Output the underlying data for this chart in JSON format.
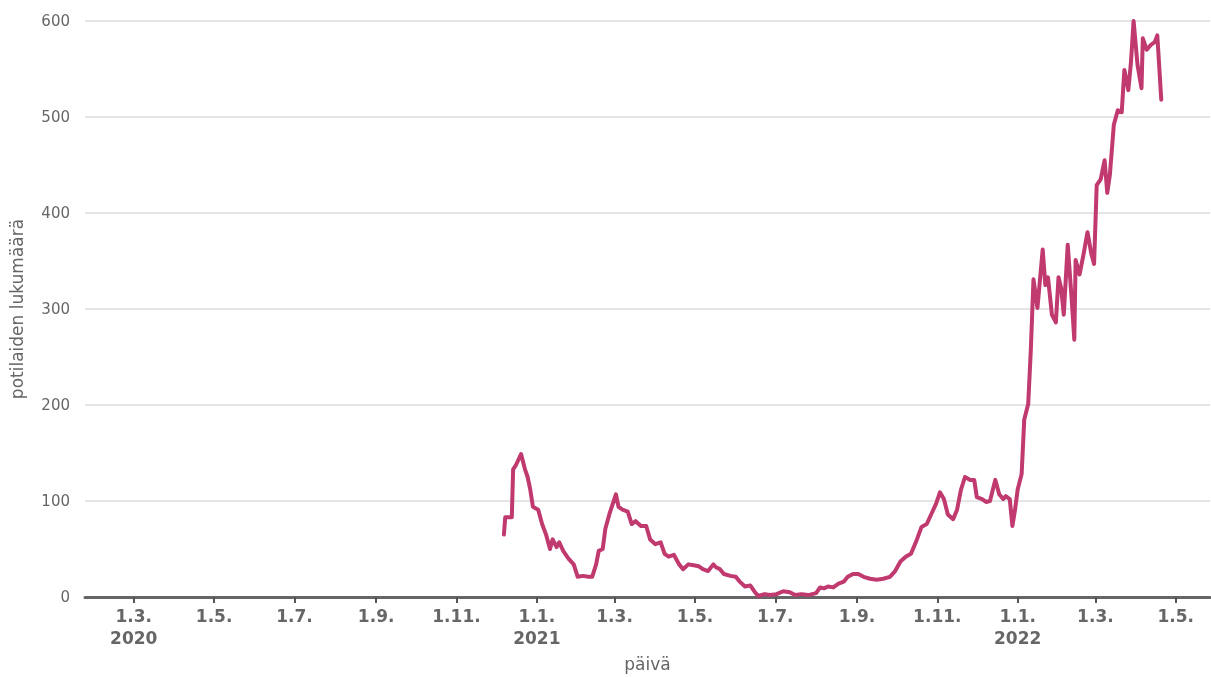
{
  "chart_data": {
    "type": "line",
    "xlabel": "päivä",
    "ylabel": "potilaiden lukumäärä",
    "xlim": [
      "2020-01-24",
      "2022-05-27"
    ],
    "xticks": [
      {
        "value": "2020-03-01",
        "label": "1.3.\n2020"
      },
      {
        "value": "2020-05-01",
        "label": "1.5."
      },
      {
        "value": "2020-07-01",
        "label": "1.7."
      },
      {
        "value": "2020-09-01",
        "label": "1.9."
      },
      {
        "value": "2020-11-01",
        "label": "1.11."
      },
      {
        "value": "2021-01-01",
        "label": "1.1.\n2021"
      },
      {
        "value": "2021-03-01",
        "label": "1.3."
      },
      {
        "value": "2021-05-01",
        "label": "1.5."
      },
      {
        "value": "2021-07-01",
        "label": "1.7."
      },
      {
        "value": "2021-09-01",
        "label": "1.9."
      },
      {
        "value": "2021-11-01",
        "label": "1.11."
      },
      {
        "value": "2022-01-01",
        "label": "1.1.\n2022"
      },
      {
        "value": "2022-03-01",
        "label": "1.3."
      },
      {
        "value": "2022-05-01",
        "label": "1.5."
      }
    ],
    "ylim": [
      0,
      600
    ],
    "yticks": [
      0,
      100,
      200,
      300,
      400,
      500,
      600
    ],
    "grid": "y",
    "marker": "none",
    "line_style": "solid",
    "series": [
      {
        "color": "#c0396f",
        "x": [
          "2020-12-07",
          "2020-12-08",
          "2020-12-11",
          "2020-12-13",
          "2020-12-14",
          "2020-12-16",
          "2020-12-18",
          "2020-12-20",
          "2020-12-23",
          "2020-12-25",
          "2020-12-27",
          "2020-12-29",
          "2021-01-02",
          "2021-01-05",
          "2021-01-08",
          "2021-01-11",
          "2021-01-13",
          "2021-01-16",
          "2021-01-18",
          "2021-01-21",
          "2021-01-25",
          "2021-01-29",
          "2021-02-01",
          "2021-02-05",
          "2021-02-09",
          "2021-02-12",
          "2021-02-15",
          "2021-02-17",
          "2021-02-20",
          "2021-02-22",
          "2021-02-25",
          "2021-03-02",
          "2021-03-04",
          "2021-03-07",
          "2021-03-11",
          "2021-03-14",
          "2021-03-17",
          "2021-03-21",
          "2021-03-25",
          "2021-03-28",
          "2021-04-01",
          "2021-04-05",
          "2021-04-08",
          "2021-04-11",
          "2021-04-15",
          "2021-04-19",
          "2021-04-22",
          "2021-04-26",
          "2021-04-30",
          "2021-05-04",
          "2021-05-07",
          "2021-05-11",
          "2021-05-15",
          "2021-05-17",
          "2021-05-20",
          "2021-05-23",
          "2021-05-28",
          "2021-06-01",
          "2021-06-04",
          "2021-06-08",
          "2021-06-12",
          "2021-06-15",
          "2021-06-18",
          "2021-06-23",
          "2021-06-27",
          "2021-07-02",
          "2021-07-07",
          "2021-07-12",
          "2021-07-16",
          "2021-07-21",
          "2021-07-26",
          "2021-08-01",
          "2021-08-04",
          "2021-08-07",
          "2021-08-10",
          "2021-08-14",
          "2021-08-18",
          "2021-08-22",
          "2021-08-25",
          "2021-08-29",
          "2021-09-02",
          "2021-09-06",
          "2021-09-11",
          "2021-09-16",
          "2021-09-21",
          "2021-09-26",
          "2021-09-30",
          "2021-10-04",
          "2021-10-08",
          "2021-10-12",
          "2021-10-16",
          "2021-10-20",
          "2021-10-24",
          "2021-10-28",
          "2021-10-31",
          "2021-11-03",
          "2021-11-06",
          "2021-11-09",
          "2021-11-13",
          "2021-11-16",
          "2021-11-19",
          "2021-11-22",
          "2021-11-26",
          "2021-11-29",
          "2021-12-01",
          "2021-12-05",
          "2021-12-08",
          "2021-12-11",
          "2021-12-15",
          "2021-12-18",
          "2021-12-21",
          "2021-12-23",
          "2021-12-26",
          "2021-12-28",
          "2021-12-30",
          "2022-01-01",
          "2022-01-04",
          "2022-01-06",
          "2022-01-09",
          "2022-01-11",
          "2022-01-13",
          "2022-01-16",
          "2022-01-20",
          "2022-01-22",
          "2022-01-24",
          "2022-01-27",
          "2022-01-30",
          "2022-02-01",
          "2022-02-03",
          "2022-02-05",
          "2022-02-08",
          "2022-02-11",
          "2022-02-13",
          "2022-02-14",
          "2022-02-17",
          "2022-02-20",
          "2022-02-23",
          "2022-02-26",
          "2022-02-28",
          "2022-03-02",
          "2022-03-05",
          "2022-03-08",
          "2022-03-10",
          "2022-03-12",
          "2022-03-15",
          "2022-03-18",
          "2022-03-21",
          "2022-03-23",
          "2022-03-26",
          "2022-03-28",
          "2022-03-30",
          "2022-04-02",
          "2022-04-05",
          "2022-04-06",
          "2022-04-09",
          "2022-04-12",
          "2022-04-15",
          "2022-04-17",
          "2022-04-20"
        ],
        "values": [
          65,
          83,
          83,
          83,
          133,
          137,
          143,
          149,
          133,
          125,
          112,
          94,
          91,
          76,
          65,
          50,
          60,
          52,
          57,
          48,
          40,
          34,
          21,
          22,
          21,
          21,
          34,
          48,
          50,
          71,
          86,
          107,
          94,
          91,
          89,
          76,
          79,
          74,
          74,
          60,
          55,
          57,
          45,
          42,
          44,
          34,
          29,
          34,
          33,
          32,
          29,
          27,
          34,
          31,
          29,
          24,
          22,
          21,
          16,
          11,
          12,
          6,
          1,
          3,
          2,
          3,
          6,
          5,
          2,
          3,
          2,
          4,
          10,
          9,
          11,
          10,
          14,
          16,
          21,
          24,
          24,
          21,
          19,
          18,
          19,
          21,
          27,
          37,
          42,
          45,
          58,
          73,
          76,
          88,
          97,
          109,
          102,
          86,
          81,
          91,
          112,
          125,
          122,
          122,
          104,
          102,
          99,
          100,
          122,
          107,
          102,
          105,
          102,
          74,
          91,
          112,
          128,
          185,
          201,
          258,
          331,
          301,
          362,
          325,
          333,
          294,
          286,
          333,
          322,
          294,
          367,
          310,
          268,
          351,
          336,
          357,
          380,
          357,
          347,
          429,
          435,
          455,
          421,
          440,
          492,
          507,
          505,
          549,
          528,
          557,
          600,
          554,
          530,
          582,
          570,
          575,
          578,
          585,
          518
        ]
      }
    ]
  }
}
